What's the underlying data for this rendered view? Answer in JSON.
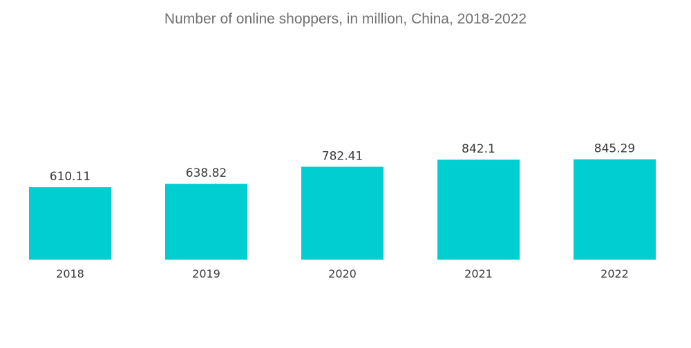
{
  "chart_data": {
    "type": "bar",
    "title": "Number of online shoppers, in million, China, 2018-2022",
    "xlabel": "",
    "ylabel": "",
    "categories": [
      "2018",
      "2019",
      "2020",
      "2021",
      "2022"
    ],
    "values": [
      610.11,
      638.82,
      782.41,
      842.1,
      845.29
    ],
    "value_labels": [
      "610.11",
      "638.82",
      "782.41",
      "842.1",
      "845.29"
    ],
    "ylim": [
      0,
      1000
    ],
    "grid": false,
    "legend": "none",
    "bar_color": "#00ced1"
  }
}
